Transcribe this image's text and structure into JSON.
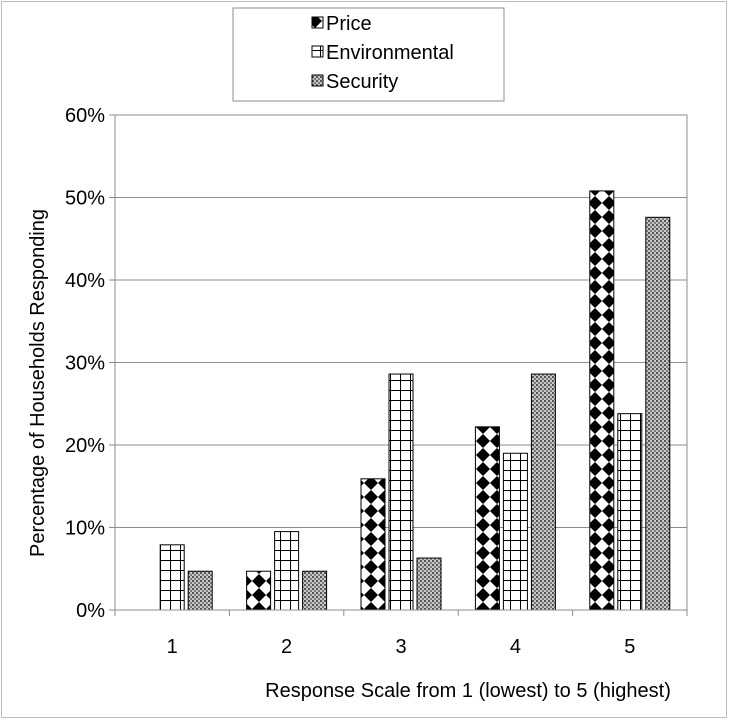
{
  "chart_data": {
    "type": "bar",
    "categories": [
      "1",
      "2",
      "3",
      "4",
      "5"
    ],
    "series": [
      {
        "name": "Price",
        "values": [
          0,
          4.7,
          15.9,
          22.2,
          50.8
        ],
        "pattern": "diamond"
      },
      {
        "name": "Environmental",
        "values": [
          7.9,
          9.5,
          28.6,
          19.0,
          23.8
        ],
        "pattern": "grid"
      },
      {
        "name": "Security",
        "values": [
          4.7,
          4.7,
          6.3,
          28.6,
          47.6
        ],
        "pattern": "dots"
      }
    ],
    "xlabel": "Response Scale from 1 (lowest) to 5 (highest)",
    "ylabel": "Percentage of Households Responding",
    "ylim": [
      0,
      60
    ],
    "yticks": [
      0,
      10,
      20,
      30,
      40,
      50,
      60
    ],
    "ytick_labels": [
      "0%",
      "10%",
      "20%",
      "30%",
      "40%",
      "50%",
      "60%"
    ],
    "grid": true,
    "legend_position": "top-center"
  }
}
